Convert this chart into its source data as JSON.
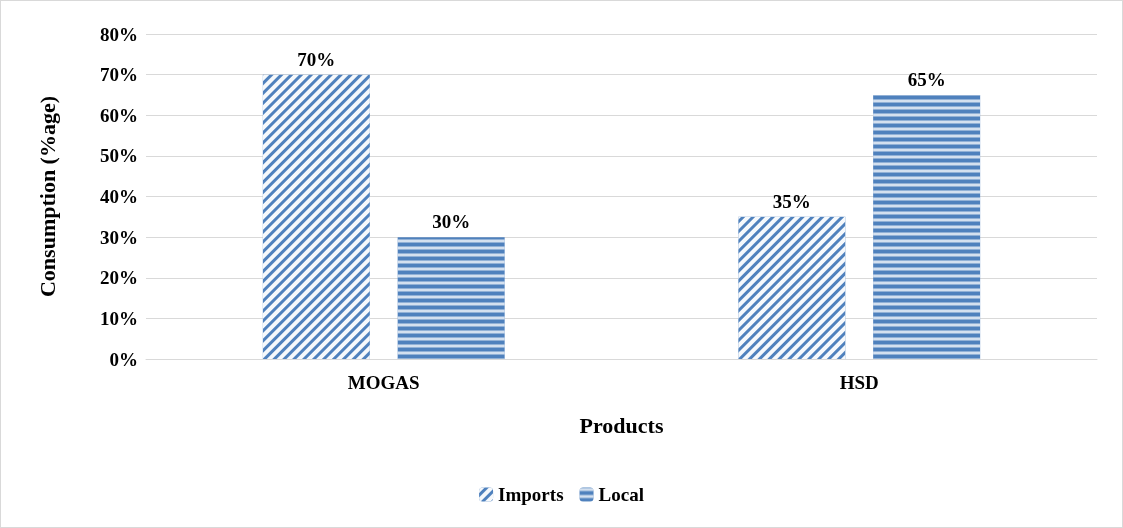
{
  "chart_data": {
    "type": "bar",
    "xlabel": "Products",
    "ylabel": "Consumption (%age)",
    "categories": [
      "MOGAS",
      "HSD"
    ],
    "series": [
      {
        "name": "Imports",
        "color": "#4f81bd",
        "values": [
          70,
          35
        ],
        "value_labels": [
          "70%",
          "35%"
        ]
      },
      {
        "name": "Local",
        "color": "#4f81bd",
        "values": [
          30,
          65
        ],
        "value_labels": [
          "30%",
          "65%"
        ]
      }
    ],
    "ylim": [
      0,
      80
    ],
    "yticks": [
      {
        "value": 0,
        "label": "0%"
      },
      {
        "value": 10,
        "label": "10%"
      },
      {
        "value": 20,
        "label": "20%"
      },
      {
        "value": 30,
        "label": "30%"
      },
      {
        "value": 40,
        "label": "40%"
      },
      {
        "value": 50,
        "label": "50%"
      },
      {
        "value": 60,
        "label": "60%"
      },
      {
        "value": 70,
        "label": "70%"
      },
      {
        "value": 80,
        "label": "80%"
      }
    ],
    "grid": "y",
    "legend": "bottom"
  }
}
